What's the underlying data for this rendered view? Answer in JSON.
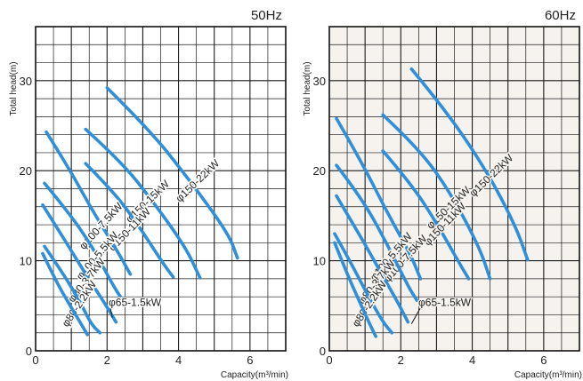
{
  "chart_data": [
    {
      "type": "line",
      "title": "50Hz",
      "xlabel": "Capacity(m³/min)",
      "ylabel": "Total head(m)",
      "xlim": [
        0,
        7
      ],
      "ylim": [
        0,
        36
      ],
      "x_ticks": [
        "0",
        "2",
        "4",
        "6"
      ],
      "y_ticks": [
        "0",
        "10",
        "20",
        "30"
      ],
      "grid": true,
      "series": [
        {
          "name": "φ150-22kW",
          "points": [
            [
              2.0,
              29.2
            ],
            [
              3.2,
              24.5
            ],
            [
              4.3,
              19.0
            ],
            [
              5.4,
              13.0
            ],
            [
              5.65,
              10.3
            ]
          ]
        },
        {
          "name": "φ150-15kW",
          "points": [
            [
              1.4,
              24.6
            ],
            [
              2.4,
              21.0
            ],
            [
              3.3,
              16.5
            ],
            [
              4.2,
              11.5
            ],
            [
              4.6,
              8.1
            ]
          ]
        },
        {
          "name": "φ150-11kW",
          "points": [
            [
              1.4,
              20.8
            ],
            [
              2.2,
              17.6
            ],
            [
              2.9,
              13.8
            ],
            [
              3.55,
              9.8
            ],
            [
              3.85,
              8.2
            ]
          ]
        },
        {
          "name": "φ100-7.5kW",
          "points": [
            [
              0.3,
              24.3
            ],
            [
              0.9,
              20.5
            ],
            [
              1.6,
              15.5
            ],
            [
              2.3,
              11.0
            ],
            [
              2.65,
              8.5
            ]
          ]
        },
        {
          "name": "φ100-5.5kW",
          "points": [
            [
              0.25,
              18.6
            ],
            [
              0.9,
              15.5
            ],
            [
              1.6,
              11.5
            ],
            [
              2.2,
              7.0
            ],
            [
              2.5,
              5.3
            ]
          ]
        },
        {
          "name": "φ80-3.7kW",
          "points": [
            [
              0.2,
              16.2
            ],
            [
              0.8,
              12.4
            ],
            [
              1.4,
              8.5
            ],
            [
              1.9,
              5.5
            ],
            [
              2.25,
              3.2
            ]
          ]
        },
        {
          "name": "φ80-2.2kW",
          "points": [
            [
              0.25,
              11.6
            ],
            [
              0.7,
              9.0
            ],
            [
              1.2,
              5.8
            ],
            [
              1.55,
              3.0
            ],
            [
              1.8,
              2.0
            ]
          ]
        },
        {
          "name": "φ65-1.5kW",
          "points": [
            [
              0.2,
              10.8
            ],
            [
              0.6,
              7.5
            ],
            [
              1.0,
              4.8
            ],
            [
              1.3,
              2.8
            ],
            [
              1.45,
              1.8
            ]
          ]
        }
      ],
      "annotation": "φ65-1.5kW"
    },
    {
      "type": "line",
      "title": "60Hz",
      "xlabel": "Capacity(m³/min)",
      "ylabel": "Total head(m)",
      "xlim": [
        0,
        7
      ],
      "ylim": [
        0,
        36
      ],
      "x_ticks": [
        "0",
        "2",
        "4",
        "6"
      ],
      "y_ticks": [
        "0",
        "10",
        "20",
        "30"
      ],
      "grid": true,
      "series": [
        {
          "name": "φ150-22kW",
          "points": [
            [
              2.3,
              31.3
            ],
            [
              3.3,
              26.5
            ],
            [
              4.4,
              20.0
            ],
            [
              5.2,
              14.0
            ],
            [
              5.55,
              10.1
            ]
          ]
        },
        {
          "name": "φ150-15kW",
          "points": [
            [
              1.5,
              26.2
            ],
            [
              2.5,
              22.5
            ],
            [
              3.4,
              17.5
            ],
            [
              4.2,
              11.5
            ],
            [
              4.5,
              8.0
            ]
          ]
        },
        {
          "name": "φ150-11kW",
          "points": [
            [
              1.5,
              22.2
            ],
            [
              2.3,
              18.5
            ],
            [
              3.0,
              14.2
            ],
            [
              3.6,
              10.0
            ],
            [
              3.9,
              8.0
            ]
          ]
        },
        {
          "name": "φ100-7.5kW",
          "points": [
            [
              0.2,
              25.8
            ],
            [
              0.9,
              21.0
            ],
            [
              1.6,
              15.5
            ],
            [
              2.3,
              10.5
            ],
            [
              2.55,
              8.0
            ]
          ]
        },
        {
          "name": "φ100-5.5kW",
          "points": [
            [
              0.2,
              20.6
            ],
            [
              0.9,
              17.0
            ],
            [
              1.6,
              12.0
            ],
            [
              2.2,
              7.2
            ],
            [
              2.45,
              5.6
            ]
          ]
        },
        {
          "name": "φ80-3.7kW",
          "points": [
            [
              0.2,
              17.2
            ],
            [
              0.8,
              13.2
            ],
            [
              1.4,
              9.0
            ],
            [
              1.9,
              5.5
            ],
            [
              2.2,
              3.2
            ]
          ]
        },
        {
          "name": "φ80-2.2kW",
          "points": [
            [
              0.15,
              13.0
            ],
            [
              0.6,
              9.8
            ],
            [
              1.1,
              6.0
            ],
            [
              1.5,
              3.2
            ],
            [
              1.75,
              2.0
            ]
          ]
        },
        {
          "name": "φ65-1.5kW",
          "points": [
            [
              0.15,
              12.0
            ],
            [
              0.5,
              8.5
            ],
            [
              0.9,
              5.0
            ],
            [
              1.15,
              2.8
            ],
            [
              1.3,
              1.6
            ]
          ]
        }
      ],
      "annotation": "φ65-1.5kW"
    }
  ]
}
